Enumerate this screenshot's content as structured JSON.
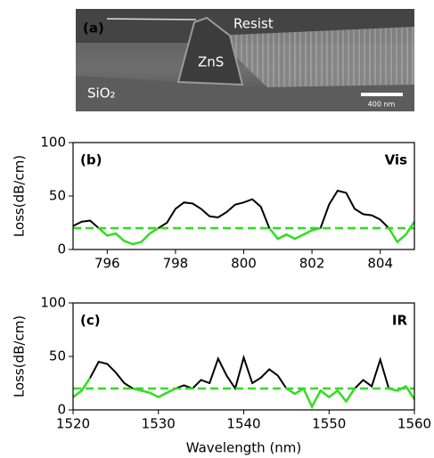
{
  "image_panel": {
    "label": "(a)",
    "resist": "Resist",
    "core": "ZnS",
    "substrate": "SiO₂",
    "scale_bar": "400 nm"
  },
  "chart_data": [
    {
      "type": "line",
      "panel_label": "(b)",
      "annotation": "Vis",
      "y_label": "Loss(dB/cm)",
      "x": [
        795,
        795.25,
        795.5,
        795.75,
        796,
        796.25,
        796.5,
        796.75,
        797,
        797.25,
        797.5,
        797.75,
        798,
        798.25,
        798.5,
        798.75,
        799,
        799.25,
        799.5,
        799.75,
        800,
        800.25,
        800.5,
        800.75,
        801,
        801.25,
        801.5,
        801.75,
        802,
        802.25,
        802.5,
        802.75,
        803,
        803.25,
        803.5,
        803.75,
        804,
        804.25,
        804.5,
        804.75,
        805
      ],
      "series": [
        {
          "color": "#000000",
          "values": [
            22,
            26,
            27,
            20,
            13,
            15,
            8,
            5,
            7,
            15,
            20,
            25,
            38,
            44,
            43,
            38,
            31,
            30,
            35,
            42,
            44,
            47,
            40,
            20,
            10,
            14,
            10,
            14,
            18,
            20,
            42,
            55,
            53,
            38,
            33,
            32,
            28,
            20,
            7,
            14,
            26
          ]
        }
      ],
      "xlim": [
        795,
        805
      ],
      "xticks": [
        796,
        798,
        800,
        802,
        804
      ],
      "ylim": [
        0,
        100
      ],
      "yticks": [
        0,
        50,
        100
      ],
      "threshold": 20,
      "threshold_color": "#33dd22"
    },
    {
      "type": "line",
      "panel_label": "(c)",
      "annotation": "IR",
      "y_label": "Loss(dB/cm)",
      "x_label": "Wavelength (nm)",
      "x": [
        1520,
        1521,
        1522,
        1523,
        1524,
        1525,
        1526,
        1527,
        1528,
        1529,
        1530,
        1531,
        1532,
        1533,
        1534,
        1535,
        1536,
        1537,
        1538,
        1539,
        1540,
        1541,
        1542,
        1543,
        1544,
        1545,
        1546,
        1547,
        1548,
        1549,
        1550,
        1551,
        1552,
        1553,
        1554,
        1555,
        1556,
        1557,
        1558,
        1559,
        1560
      ],
      "series": [
        {
          "color": "#000000",
          "values": [
            12,
            18,
            30,
            45,
            43,
            35,
            25,
            20,
            18,
            16,
            12,
            16,
            20,
            23,
            20,
            28,
            25,
            48,
            32,
            20,
            49,
            25,
            30,
            38,
            32,
            20,
            15,
            20,
            3,
            18,
            12,
            18,
            8,
            20,
            28,
            22,
            47,
            20,
            18,
            22,
            10
          ]
        }
      ],
      "xlim": [
        1520,
        1560
      ],
      "xticks": [
        1520,
        1530,
        1540,
        1550,
        1560
      ],
      "ylim": [
        0,
        100
      ],
      "yticks": [
        0,
        50,
        100
      ],
      "threshold": 20,
      "threshold_color": "#33dd22"
    }
  ]
}
